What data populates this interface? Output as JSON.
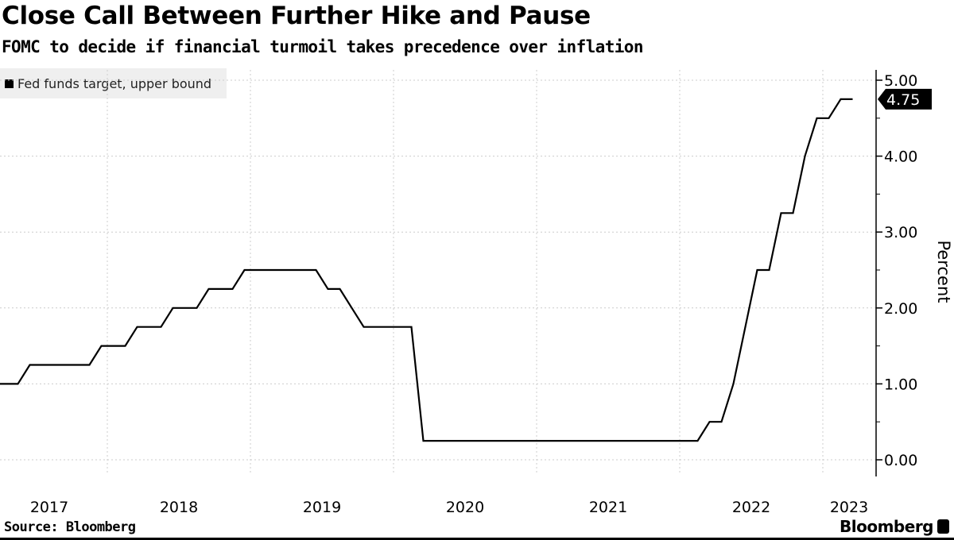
{
  "title": "Close Call Between Further Hike and Pause",
  "subtitle": "FOMC to decide if financial turmoil takes precedence over inflation",
  "source": "Source: Bloomberg",
  "brand": "Bloomberg",
  "chart_data": {
    "type": "line",
    "title": "Close Call Between Further Hike and Pause",
    "ylabel": "Percent",
    "xlabel": "",
    "ylim": [
      0,
      5
    ],
    "yticks": [
      "0.00",
      "1.00",
      "2.00",
      "3.00",
      "4.00",
      "5.00"
    ],
    "xticks": [
      "2017",
      "2018",
      "2019",
      "2020",
      "2021",
      "2022",
      "2023"
    ],
    "grid": true,
    "legend_position": "top-left",
    "last_value_label": "4.75",
    "line_color": "#000000",
    "series": [
      {
        "name": "Fed funds target, upper bound",
        "x": [
          "2017-03",
          "2017-04",
          "2017-05",
          "2017-06",
          "2017-07",
          "2017-08",
          "2017-09",
          "2017-10",
          "2017-11",
          "2017-12",
          "2018-01",
          "2018-02",
          "2018-03",
          "2018-04",
          "2018-05",
          "2018-06",
          "2018-07",
          "2018-08",
          "2018-09",
          "2018-10",
          "2018-11",
          "2018-12",
          "2019-01",
          "2019-02",
          "2019-03",
          "2019-04",
          "2019-05",
          "2019-06",
          "2019-07",
          "2019-08",
          "2019-09",
          "2019-10",
          "2019-11",
          "2019-12",
          "2020-01",
          "2020-02",
          "2020-03",
          "2020-04",
          "2020-05",
          "2020-06",
          "2020-07",
          "2020-08",
          "2020-09",
          "2020-10",
          "2020-11",
          "2020-12",
          "2021-01",
          "2021-02",
          "2021-03",
          "2021-04",
          "2021-05",
          "2021-06",
          "2021-07",
          "2021-08",
          "2021-09",
          "2021-10",
          "2021-11",
          "2021-12",
          "2022-01",
          "2022-02",
          "2022-03",
          "2022-04",
          "2022-05",
          "2022-06",
          "2022-07",
          "2022-08",
          "2022-09",
          "2022-10",
          "2022-11",
          "2022-12",
          "2023-01",
          "2023-02",
          "2023-03"
        ],
        "values": [
          1.0,
          1.0,
          1.0,
          1.25,
          1.25,
          1.25,
          1.25,
          1.25,
          1.25,
          1.5,
          1.5,
          1.5,
          1.75,
          1.75,
          1.75,
          2.0,
          2.0,
          2.0,
          2.25,
          2.25,
          2.25,
          2.5,
          2.5,
          2.5,
          2.5,
          2.5,
          2.5,
          2.5,
          2.25,
          2.25,
          2.0,
          1.75,
          1.75,
          1.75,
          1.75,
          1.75,
          0.25,
          0.25,
          0.25,
          0.25,
          0.25,
          0.25,
          0.25,
          0.25,
          0.25,
          0.25,
          0.25,
          0.25,
          0.25,
          0.25,
          0.25,
          0.25,
          0.25,
          0.25,
          0.25,
          0.25,
          0.25,
          0.25,
          0.25,
          0.25,
          0.5,
          0.5,
          1.0,
          1.75,
          2.5,
          2.5,
          3.25,
          3.25,
          4.0,
          4.5,
          4.5,
          4.75,
          4.75
        ]
      }
    ]
  }
}
